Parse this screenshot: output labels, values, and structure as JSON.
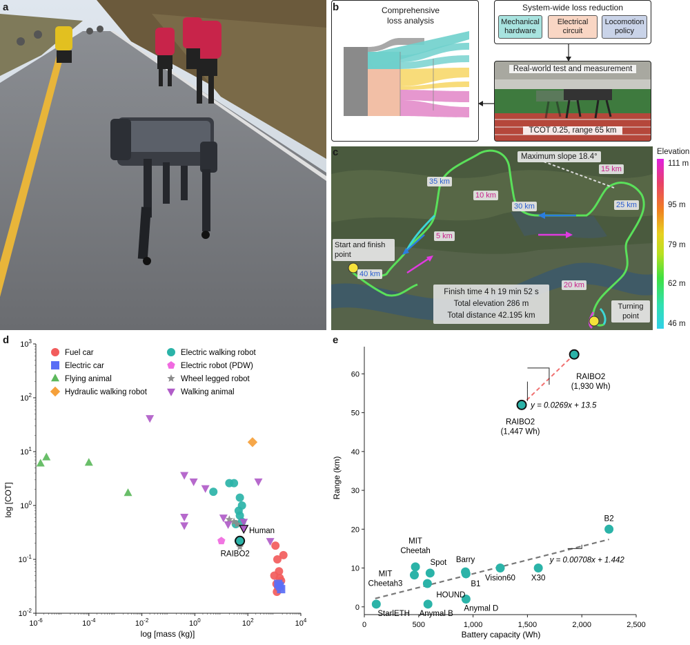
{
  "panel_labels": {
    "a": "a",
    "b": "b",
    "c": "c",
    "d": "d",
    "e": "e"
  },
  "panel_b": {
    "loss_title_1": "Comprehensive",
    "loss_title_2": "loss analysis",
    "reduction_title": "System-wide loss reduction",
    "pill_mech": "Mechanical hardware",
    "pill_elec": "Electrical circuit",
    "pill_loco": "Locomotion policy",
    "test_title": "Real-world test and measurement",
    "test_caption": "TCOT 0.25, range 65 km",
    "colors": {
      "teal": "#6fd0cc",
      "peach": "#f2bfa6",
      "yellow": "#f8dc7a",
      "pink": "#e697cf",
      "gray": "#8a8a8a"
    }
  },
  "panel_c": {
    "elevation_title": "Elevation",
    "elevation_ticks": [
      "111 m",
      "95 m",
      "79 m",
      "62 m",
      "46 m"
    ],
    "max_slope": "Maximum slope 18.4°",
    "start_finish": "Start and finish point",
    "turning": "Turning point",
    "km_labels": [
      "35 km",
      "10 km",
      "30 km",
      "15 km",
      "25 km",
      "5 km",
      "40 km",
      "20 km"
    ],
    "stats": [
      "Finish time 4 h 19 min 52 s",
      "Total elevation 286 m",
      "Total distance 42.195 km"
    ]
  },
  "panel_d": {
    "xlabel": "log [mass (kg)]",
    "ylabel": "log [COT]",
    "legend": [
      {
        "label": "Fuel car",
        "color": "#f25c5c",
        "marker": "circle"
      },
      {
        "label": "Electric car",
        "color": "#5a6ef5",
        "marker": "square"
      },
      {
        "label": "Flying animal",
        "color": "#5cb85c",
        "marker": "triangle-up"
      },
      {
        "label": "Hydraulic walking robot",
        "color": "#f5a03a",
        "marker": "diamond"
      },
      {
        "label": "Electric walking robot",
        "color": "#2bb3a8",
        "marker": "circle"
      },
      {
        "label": "Electric robot (PDW)",
        "color": "#f06ae0",
        "marker": "pentagon"
      },
      {
        "label": "Wheel legged robot",
        "color": "#8c8c8c",
        "marker": "star"
      },
      {
        "label": "Walking animal",
        "color": "#b05cc8",
        "marker": "triangle-down"
      }
    ],
    "annotations": {
      "human": "Human",
      "raibo": "RAIBO2"
    },
    "x_ticks": [
      "10^-6",
      "10^-4",
      "10^-2",
      "10^0",
      "10^2",
      "10^4"
    ],
    "y_ticks": [
      "10^-2",
      "10^-1",
      "10^0",
      "10^1",
      "10^2",
      "10^3"
    ]
  },
  "panel_e": {
    "xlabel": "Battery capacity (Wh)",
    "ylabel": "Range (km)",
    "fit_top": "y = 0.0269x + 13.5",
    "fit_bottom": "y = 0.00708x + 1.442",
    "raibo_high": [
      "RAIBO2",
      "(1,930 Wh)"
    ],
    "raibo_low": [
      "RAIBO2",
      "(1,447 Wh)"
    ],
    "x_ticks": [
      "0",
      "500",
      "1,000",
      "1,500",
      "2,000",
      "2,500"
    ],
    "y_ticks": [
      "0",
      "10",
      "20",
      "30",
      "40",
      "50",
      "60"
    ]
  },
  "chart_data": [
    {
      "type": "scatter",
      "xlabel": "log [mass (kg)]",
      "ylabel": "log [COT]",
      "xscale": "log",
      "yscale": "log",
      "xlim": [
        1e-06,
        10000.0
      ],
      "ylim": [
        0.01,
        1000.0
      ],
      "series": [
        {
          "name": "Fuel car",
          "points": [
            [
              1100,
              0.18
            ],
            [
              1300,
              0.1
            ],
            [
              2200,
              0.12
            ],
            [
              1500,
              0.06
            ],
            [
              1000,
              0.05
            ],
            [
              1200,
              0.035
            ],
            [
              1400,
              0.03
            ],
            [
              1600,
              0.045
            ],
            [
              1250,
              0.025
            ],
            [
              1800,
              0.04
            ]
          ]
        },
        {
          "name": "Electric car",
          "points": [
            [
              1400,
              0.035
            ],
            [
              1800,
              0.028
            ],
            [
              1600,
              0.032
            ]
          ]
        },
        {
          "name": "Flying animal",
          "points": [
            [
              1.5e-06,
              6
            ],
            [
              2.5e-06,
              7.8
            ],
            [
              0.0001,
              6.2
            ],
            [
              0.003,
              1.7
            ]
          ]
        },
        {
          "name": "Hydraulic walking robot",
          "points": [
            [
              150,
              15
            ]
          ]
        },
        {
          "name": "Electric walking robot",
          "points": [
            [
              5,
              1.8
            ],
            [
              20,
              2.6
            ],
            [
              30,
              2.6
            ],
            [
              50,
              1.4
            ],
            [
              60,
              1.0
            ],
            [
              45,
              0.8
            ],
            [
              50,
              0.65
            ],
            [
              60,
              0.5
            ],
            [
              35,
              0.45
            ],
            [
              45,
              0.22
            ]
          ]
        },
        {
          "name": "Electric robot (PDW)",
          "points": [
            [
              10,
              0.22
            ]
          ]
        },
        {
          "name": "Wheel legged robot",
          "points": [
            [
              20,
              0.55
            ],
            [
              30,
              0.5
            ],
            [
              40,
              0.45
            ],
            [
              50,
              0.17
            ]
          ]
        },
        {
          "name": "Walking animal",
          "points": [
            [
              0.02,
              42
            ],
            [
              0.4,
              3.7
            ],
            [
              0.9,
              2.8
            ],
            [
              2.5,
              2.1
            ],
            [
              0.4,
              0.62
            ],
            [
              0.4,
              0.43
            ],
            [
              12,
              0.6
            ],
            [
              18,
              0.45
            ],
            [
              70,
              0.5
            ],
            [
              250,
              2.8
            ],
            [
              700,
              0.22
            ]
          ]
        },
        {
          "name": "Human",
          "points": [
            [
              70,
              0.38
            ]
          ]
        },
        {
          "name": "RAIBO2",
          "points": [
            [
              50,
              0.22
            ]
          ]
        }
      ]
    },
    {
      "type": "scatter",
      "xlabel": "Battery capacity (Wh)",
      "ylabel": "Range (km)",
      "xlim": [
        0,
        2500
      ],
      "ylim": [
        -2,
        67
      ],
      "points": [
        {
          "label": "StarlETH",
          "x": 110,
          "y": 0.7
        },
        {
          "label": "MIT Cheetah3",
          "x": 460,
          "y": 8.2
        },
        {
          "label": "MIT Cheetah",
          "x": 470,
          "y": 10.3
        },
        {
          "label": "HOUND",
          "x": 580,
          "y": 6
        },
        {
          "label": "Spot",
          "x": 605,
          "y": 8.7
        },
        {
          "label": "Anymal B",
          "x": 585,
          "y": 0.7
        },
        {
          "label": "Barry",
          "x": 930,
          "y": 9
        },
        {
          "label": "B1",
          "x": 935,
          "y": 8.5
        },
        {
          "label": "Anymal D",
          "x": 935,
          "y": 2
        },
        {
          "label": "Vision60",
          "x": 1250,
          "y": 10
        },
        {
          "label": "X30",
          "x": 1600,
          "y": 10
        },
        {
          "label": "B2",
          "x": 2250,
          "y": 20
        },
        {
          "label": "RAIBO2 (1,447 Wh)",
          "x": 1447,
          "y": 52
        },
        {
          "label": "RAIBO2 (1,930 Wh)",
          "x": 1930,
          "y": 65
        }
      ],
      "fits": [
        {
          "label": "y = 0.00708x + 1.442",
          "slope": 0.00708,
          "intercept": 1.442,
          "x_range": [
            100,
            2250
          ]
        },
        {
          "label": "y = 0.0269x + 13.5",
          "slope": 0.0269,
          "intercept": 13.5,
          "x_range": [
            1447,
            1930
          ]
        }
      ]
    }
  ]
}
